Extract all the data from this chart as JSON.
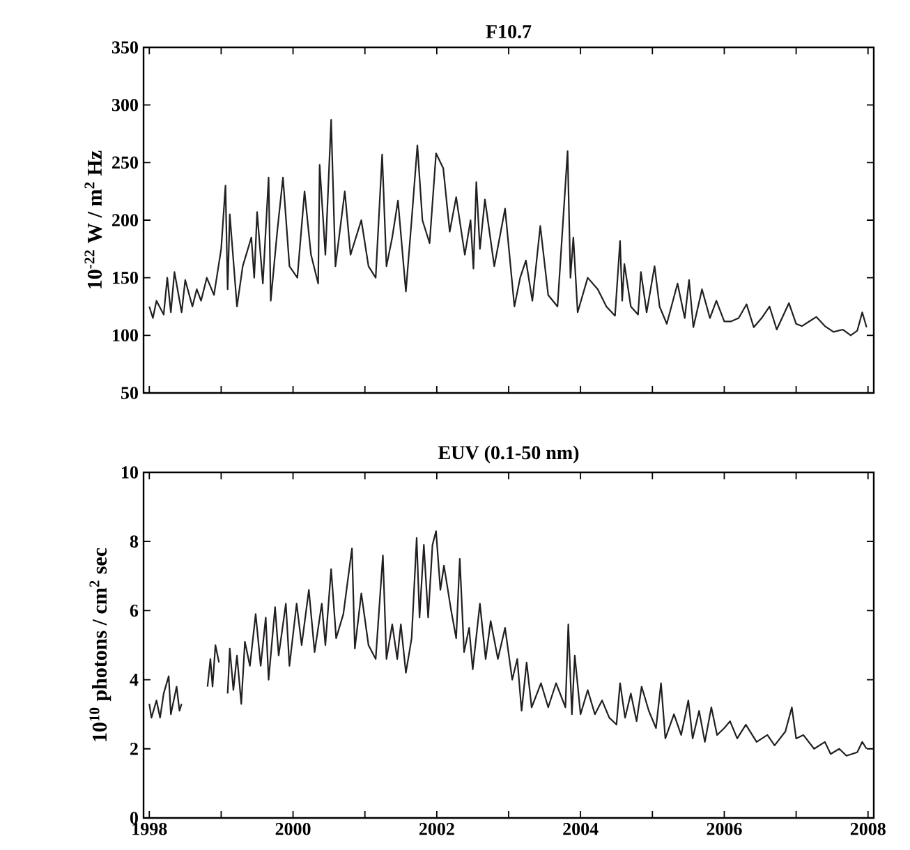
{
  "chart_data": [
    {
      "type": "line",
      "title": "F10.7",
      "ylabel": "10$^{-22}$ W / m$^{2}$ Hz",
      "tick_labels": "y",
      "xlim": [
        1997.92,
        2008.08
      ],
      "ylim": [
        50,
        350
      ],
      "yticks": [
        50,
        100,
        150,
        200,
        250,
        300,
        350
      ],
      "xticks": [
        {
          "value": 1998,
          "label": null
        },
        {
          "value": 1999,
          "label": null
        },
        {
          "value": 2000,
          "label": null
        },
        {
          "value": 2001,
          "label": null
        },
        {
          "value": 2002,
          "label": null
        },
        {
          "value": 2003,
          "label": null
        },
        {
          "value": 2004,
          "label": null
        },
        {
          "value": 2005,
          "label": null
        },
        {
          "value": 2006,
          "label": null
        },
        {
          "value": 2007,
          "label": null
        },
        {
          "value": 2008,
          "label": null
        }
      ],
      "series": [
        {
          "color": "#231f20",
          "x": [
            1998.0,
            1998.05,
            1998.1,
            1998.2,
            1998.25,
            1998.3,
            1998.35,
            1998.45,
            1998.5,
            1998.6,
            1998.66,
            1998.72,
            1998.8,
            1998.9,
            1999.0,
            1999.06,
            1999.09,
            1999.12,
            1999.22,
            1999.3,
            1999.42,
            1999.46,
            1999.5,
            1999.58,
            1999.66,
            1999.69,
            1999.78,
            1999.86,
            1999.95,
            2000.06,
            2000.16,
            2000.25,
            2000.35,
            2000.37,
            2000.45,
            2000.53,
            2000.59,
            2000.72,
            2000.8,
            2000.95,
            2001.05,
            2001.15,
            2001.24,
            2001.3,
            2001.38,
            2001.46,
            2001.57,
            2001.65,
            2001.73,
            2001.8,
            2001.9,
            2001.99,
            2002.09,
            2002.18,
            2002.27,
            2002.39,
            2002.47,
            2002.51,
            2002.55,
            2002.6,
            2002.67,
            2002.8,
            2002.95,
            2003.08,
            2003.16,
            2003.24,
            2003.33,
            2003.44,
            2003.55,
            2003.68,
            2003.82,
            2003.86,
            2003.9,
            2003.96,
            2004.1,
            2004.24,
            2004.36,
            2004.48,
            2004.55,
            2004.58,
            2004.61,
            2004.7,
            2004.8,
            2004.84,
            2004.92,
            2005.03,
            2005.1,
            2005.2,
            2005.35,
            2005.45,
            2005.51,
            2005.57,
            2005.69,
            2005.8,
            2005.89,
            2006.0,
            2006.09,
            2006.2,
            2006.31,
            2006.41,
            2006.52,
            2006.63,
            2006.73,
            2006.9,
            2007.0,
            2007.08,
            2007.18,
            2007.28,
            2007.4,
            2007.52,
            2007.65,
            2007.76,
            2007.85,
            2007.92,
            2007.98
          ],
          "values": [
            125,
            115,
            130,
            118,
            150,
            120,
            155,
            120,
            148,
            125,
            140,
            130,
            150,
            135,
            175,
            230,
            140,
            205,
            125,
            160,
            185,
            150,
            207,
            145,
            237,
            130,
            190,
            237,
            160,
            150,
            225,
            170,
            145,
            248,
            170,
            287,
            160,
            225,
            170,
            200,
            160,
            150,
            257,
            160,
            185,
            217,
            138,
            200,
            265,
            200,
            180,
            258,
            245,
            190,
            220,
            170,
            200,
            158,
            233,
            175,
            218,
            160,
            210,
            125,
            150,
            165,
            130,
            195,
            135,
            125,
            260,
            150,
            185,
            120,
            150,
            140,
            125,
            117,
            182,
            130,
            162,
            125,
            118,
            155,
            120,
            160,
            125,
            110,
            145,
            115,
            148,
            107,
            140,
            115,
            130,
            112,
            112,
            115,
            127,
            107,
            115,
            125,
            105,
            128,
            110,
            108,
            112,
            116,
            108,
            103,
            105,
            100,
            104,
            120,
            107
          ]
        }
      ]
    },
    {
      "type": "line",
      "title": "EUV (0.1-50 nm)",
      "ylabel": "10$^{10}$ photons / cm$^{2}$ sec",
      "xlim": [
        1997.92,
        2008.08
      ],
      "ylim": [
        0,
        10
      ],
      "yticks": [
        0,
        2,
        4,
        6,
        8,
        10
      ],
      "xticks": [
        1998,
        {
          "value": 1999,
          "label": null
        },
        2000,
        {
          "value": 2001,
          "label": null
        },
        2002,
        {
          "value": 2003,
          "label": null
        },
        2004,
        {
          "value": 2005,
          "label": null
        },
        2006,
        {
          "value": 2007,
          "label": null
        },
        2008
      ],
      "series": [
        {
          "color": "#231f20",
          "x": [
            1998.0,
            1998.03,
            1998.1,
            1998.15,
            1998.2,
            1998.27,
            1998.3,
            1998.38,
            1998.42,
            1998.45,
            1998.6,
            1998.81,
            1998.85,
            1998.88,
            1998.92,
            1998.97,
            1999.03,
            1999.09,
            1999.12,
            1999.17,
            1999.22,
            1999.28,
            1999.33,
            1999.4,
            1999.48,
            1999.55,
            1999.62,
            1999.66,
            1999.75,
            1999.8,
            1999.9,
            1999.95,
            2000.05,
            2000.12,
            2000.22,
            2000.3,
            2000.4,
            2000.45,
            2000.53,
            2000.6,
            2000.7,
            2000.82,
            2000.86,
            2000.95,
            2001.05,
            2001.15,
            2001.25,
            2001.3,
            2001.38,
            2001.45,
            2001.5,
            2001.57,
            2001.65,
            2001.72,
            2001.76,
            2001.82,
            2001.88,
            2001.94,
            2001.99,
            2002.05,
            2002.1,
            2002.2,
            2002.27,
            2002.32,
            2002.38,
            2002.45,
            2002.5,
            2002.6,
            2002.68,
            2002.75,
            2002.85,
            2002.95,
            2003.05,
            2003.12,
            2003.18,
            2003.25,
            2003.32,
            2003.45,
            2003.55,
            2003.66,
            2003.79,
            2003.83,
            2003.88,
            2003.92,
            2004.0,
            2004.1,
            2004.2,
            2004.3,
            2004.4,
            2004.5,
            2004.55,
            2004.62,
            2004.7,
            2004.78,
            2004.85,
            2004.95,
            2005.05,
            2005.12,
            2005.18,
            2005.3,
            2005.4,
            2005.5,
            2005.56,
            2005.65,
            2005.73,
            2005.82,
            2005.9,
            2006.0,
            2006.08,
            2006.18,
            2006.3,
            2006.45,
            2006.6,
            2006.7,
            2006.85,
            2006.94,
            2007.0,
            2007.1,
            2007.25,
            2007.4,
            2007.48,
            2007.6,
            2007.7,
            2007.85,
            2007.92,
            2007.98
          ],
          "values": [
            3.3,
            2.9,
            3.4,
            2.9,
            3.6,
            4.1,
            3.0,
            3.8,
            3.1,
            3.3,
            null,
            3.8,
            4.6,
            3.8,
            5.0,
            4.5,
            null,
            3.6,
            4.9,
            3.7,
            4.7,
            3.3,
            5.1,
            4.4,
            5.9,
            4.4,
            5.8,
            4.0,
            6.1,
            4.7,
            6.2,
            4.4,
            6.2,
            5.0,
            6.6,
            4.8,
            6.2,
            5.0,
            7.2,
            5.2,
            5.9,
            7.8,
            4.9,
            6.5,
            5.0,
            4.6,
            7.6,
            4.6,
            5.6,
            4.6,
            5.6,
            4.2,
            5.2,
            8.1,
            5.8,
            7.9,
            5.8,
            7.9,
            8.3,
            6.6,
            7.3,
            6.0,
            5.2,
            7.5,
            4.8,
            5.5,
            4.3,
            6.2,
            4.6,
            5.7,
            4.6,
            5.5,
            4.0,
            4.6,
            3.1,
            4.5,
            3.2,
            3.9,
            3.2,
            3.9,
            3.2,
            5.6,
            3.0,
            4.7,
            3.0,
            3.7,
            3.0,
            3.4,
            2.9,
            2.7,
            3.9,
            2.9,
            3.6,
            2.8,
            3.8,
            3.1,
            2.6,
            3.9,
            2.3,
            3.0,
            2.4,
            3.4,
            2.3,
            3.1,
            2.2,
            3.2,
            2.4,
            2.6,
            2.8,
            2.3,
            2.7,
            2.2,
            2.4,
            2.1,
            2.5,
            3.2,
            2.3,
            2.4,
            2.0,
            2.2,
            1.85,
            2.0,
            1.8,
            1.9,
            2.2,
            2.0
          ]
        }
      ]
    }
  ]
}
